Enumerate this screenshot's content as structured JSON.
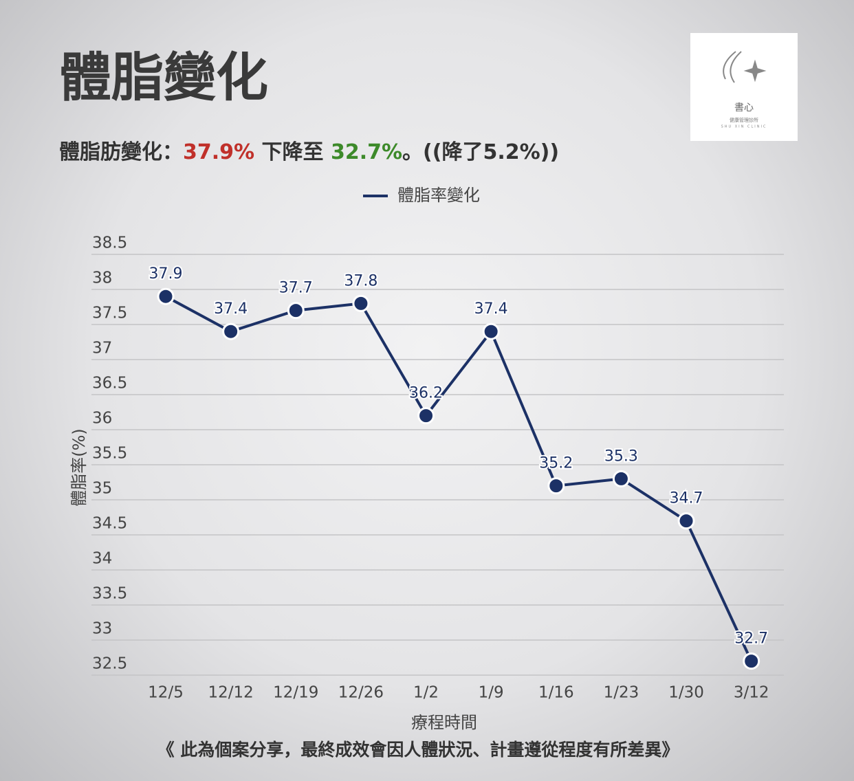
{
  "header": {
    "title": "體脂變化",
    "subtitle_parts": [
      "體脂肪變化：",
      "37.9%",
      " 下降至 ",
      "32.7%",
      "。((降了5.2%))"
    ],
    "logo": {
      "name": "書心",
      "subname": "健康管理診所",
      "english": "SHU XIN CLINIC"
    }
  },
  "chart_data": {
    "type": "line",
    "categories": [
      "12/5",
      "12/12",
      "12/19",
      "12/26",
      "1/2",
      "1/9",
      "1/16",
      "1/23",
      "1/30",
      "3/12"
    ],
    "series": [
      {
        "name": "體脂率變化",
        "color": "#1c3166",
        "values": [
          37.9,
          37.4,
          37.7,
          37.8,
          36.2,
          37.4,
          35.2,
          35.3,
          34.7,
          32.7
        ]
      }
    ],
    "ylim": [
      32.5,
      38.5
    ],
    "yticks": [
      32.5,
      33,
      33.5,
      34,
      34.5,
      35,
      35.5,
      36,
      36.5,
      37,
      37.5,
      38,
      38.5
    ],
    "grid": true,
    "y_label": "體脂率(%)",
    "x_label": "療程時間"
  },
  "footer": {
    "note": "《 此為個案分享，最終成效會因人體狀況、計畫遵從程度有所差異》"
  }
}
